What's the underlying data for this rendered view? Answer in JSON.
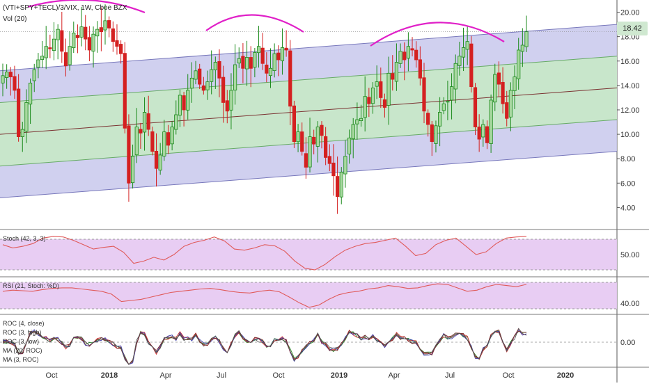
{
  "header": {
    "symbol_line": "(VTI+SPY+TECL)/3/VIX, 1W, Cboe BZX",
    "vol_label": "Vol (20)"
  },
  "price_badge": "18.42",
  "colors": {
    "up": "#1b8a1b",
    "up_body": "#a8d8a0",
    "down": "#d42020",
    "outer_band": "#c8c8ec",
    "inner_band": "#c7eac4",
    "channel_line": "#7777bb",
    "mid_line": "#7a3030",
    "annot": "#e020c8",
    "osc_fill": "#e6c8f2",
    "osc_line": "#e05a5a"
  },
  "chart_data": [
    {
      "type": "candlestick",
      "panel": "price",
      "title": "(VTI+SPY+TECL)/3/VIX, 1W, Cboe BZX",
      "x_tick_labels": [
        "Oct",
        "2018",
        "Apr",
        "Jul",
        "Oct",
        "2019",
        "Apr",
        "Jul",
        "Oct",
        "2020"
      ],
      "y_ticks": [
        "4.00",
        "6.00",
        "8.00",
        "10.00",
        "12.00",
        "14.00",
        "16.00",
        "18.00",
        "20.00"
      ],
      "ylim": [
        2.2,
        21
      ],
      "last_value": 18.42,
      "channel": {
        "mid_start": 10.0,
        "mid_end": 13.8,
        "outer_half_width": 5.2,
        "inner_half_width": 2.6
      },
      "closes": [
        14.8,
        15.1,
        14.7,
        13.6,
        9.8,
        10.4,
        12.6,
        14.2,
        15.3,
        16.1,
        16.4,
        17.2,
        17.0,
        17.8,
        18.6,
        16.8,
        15.6,
        17.2,
        18.3,
        17.9,
        18.8,
        17.8,
        16.9,
        18.2,
        18.6,
        18.4,
        19.3,
        18.7,
        17.6,
        17.2,
        16.6,
        10.5,
        6.0,
        8.2,
        10.6,
        10.1,
        11.8,
        10.4,
        8.6,
        7.2,
        8.3,
        10.2,
        9.1,
        10.6,
        11.6,
        13.2,
        12.0,
        13.6,
        14.6,
        15.2,
        14.1,
        13.6,
        14.3,
        15.3,
        15.9,
        14.6,
        12.6,
        11.9,
        13.6,
        15.7,
        16.2,
        15.4,
        16.3,
        15.4,
        16.7,
        17.2,
        15.8,
        15.0,
        15.4,
        16.6,
        16.1,
        17.1,
        16.9,
        12.3,
        9.4,
        10.2,
        8.6,
        7.3,
        9.8,
        9.2,
        10.6,
        9.9,
        8.1,
        7.6,
        6.6,
        4.9,
        6.9,
        8.2,
        9.7,
        10.8,
        11.2,
        11.3,
        13.1,
        12.5,
        13.8,
        14.3,
        13.0,
        12.2,
        15.0,
        14.5,
        15.9,
        16.8,
        16.1,
        17.2,
        16.9,
        16.1,
        14.6,
        11.9,
        10.8,
        9.4,
        10.7,
        11.8,
        12.5,
        12.7,
        13.9,
        15.8,
        16.4,
        17.1,
        17.6,
        13.9,
        10.6,
        9.6,
        10.8,
        9.3,
        12.8,
        14.9,
        14.1,
        12.5,
        11.3,
        13.6,
        14.7,
        16.9,
        17.3,
        18.4
      ],
      "annotations": [
        "arc over Oct-2017 highs",
        "arc over Aug-2018 highs",
        "arc over Apr-Jul 2019 highs"
      ]
    },
    {
      "type": "line",
      "panel": "oscillator-1",
      "title": "Stoch (42, 3, 3)",
      "y_ticks": [
        "50.00"
      ],
      "series": [
        {
          "name": "Stoch (42, 3, 3)",
          "values": [
            58,
            52,
            55,
            60,
            70,
            73,
            72,
            66,
            58,
            50,
            53,
            55,
            44,
            24,
            28,
            35,
            30,
            40,
            55,
            62,
            66,
            72,
            65,
            50,
            48,
            52,
            58,
            56,
            46,
            28,
            15,
            12,
            22,
            36,
            48,
            55,
            60,
            62,
            66,
            70,
            55,
            38,
            42,
            58,
            66,
            70,
            55,
            40,
            45,
            60,
            70,
            72,
            73
          ]
        }
      ]
    },
    {
      "type": "line",
      "panel": "oscillator-2",
      "title": "RSI (21, Stoch: %D)",
      "y_ticks": [
        "40.00"
      ],
      "series": [
        {
          "name": "RSI (21, Stoch: %D)",
          "values": [
            50,
            52,
            51,
            50,
            53,
            55,
            56,
            56,
            54,
            52,
            50,
            45,
            32,
            34,
            36,
            40,
            44,
            48,
            50,
            52,
            54,
            55,
            53,
            50,
            48,
            47,
            50,
            52,
            49,
            40,
            30,
            22,
            26,
            36,
            44,
            48,
            50,
            54,
            56,
            60,
            58,
            55,
            56,
            60,
            63,
            62,
            56,
            50,
            52,
            58,
            62,
            60,
            58,
            62
          ]
        }
      ]
    },
    {
      "type": "line",
      "panel": "oscillator-3",
      "title": "ROC",
      "y_ticks": [
        "0.00"
      ],
      "legend": [
        "ROC (4, close)",
        "ROC (3, high)",
        "ROC (3, low)",
        "MA (20, ROC)",
        "MA (3, ROC)"
      ]
    }
  ]
}
